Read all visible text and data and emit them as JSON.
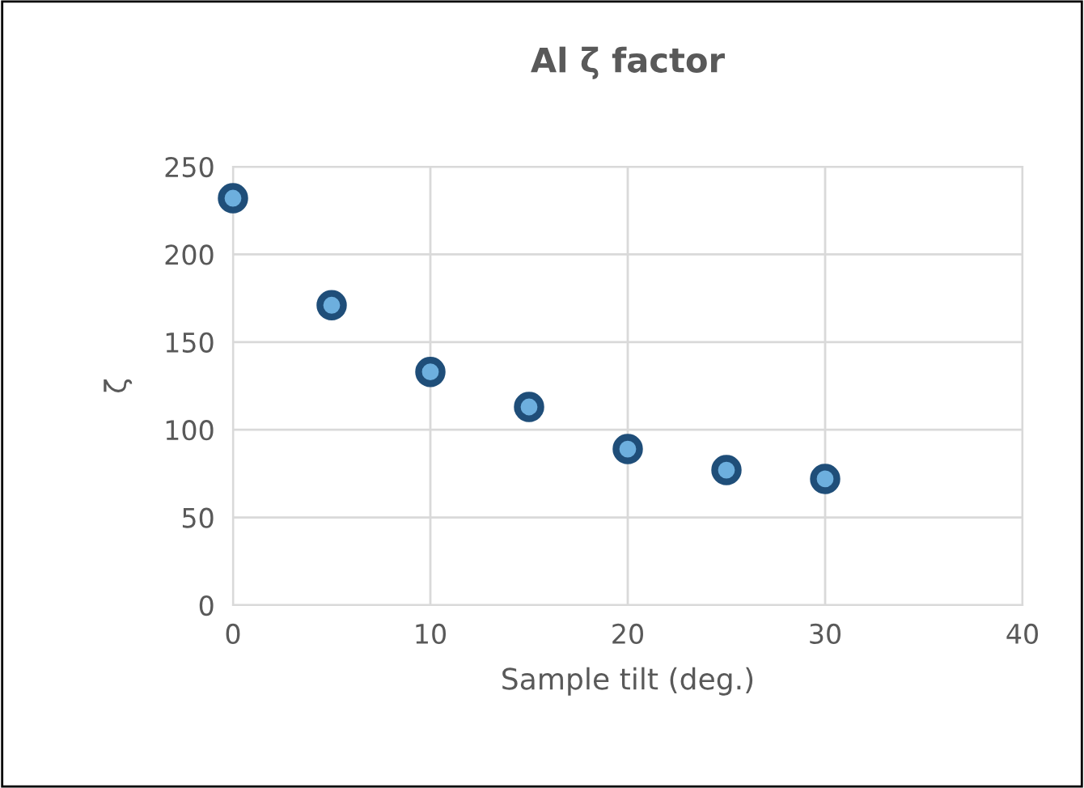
{
  "chart_data": {
    "type": "scatter",
    "title": "Al ζ factor",
    "xlabel": "Sample tilt (deg.)",
    "ylabel": "ζ",
    "x": [
      0,
      5,
      10,
      15,
      20,
      25,
      30
    ],
    "series": [
      {
        "color": "#1f4e79",
        "values": [
          232,
          171,
          133,
          113,
          89,
          77,
          72
        ]
      }
    ],
    "xlim": [
      0,
      40
    ],
    "xticks": [
      0,
      10,
      20,
      30,
      40
    ],
    "ylim": [
      0,
      250
    ],
    "yticks": [
      0,
      50,
      100,
      150,
      200,
      250
    ],
    "grid": true,
    "marker": "circle",
    "legend": false
  }
}
